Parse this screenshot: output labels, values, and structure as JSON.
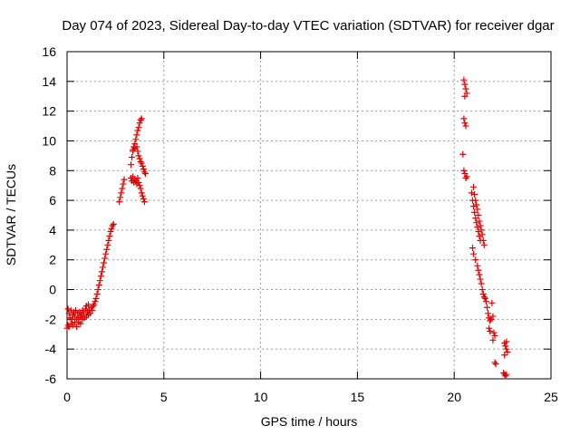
{
  "chart_data": {
    "type": "scatter",
    "title": "Day 074 of 2023, Sidereal Day-to-day VTEC variation (SDTVAR) for receiver dgar",
    "xlabel": "GPS time / hours",
    "ylabel": "SDTVAR / TECUs",
    "xlim": [
      0,
      25
    ],
    "ylim": [
      -6,
      16
    ],
    "x_ticks": [
      0,
      5,
      10,
      15,
      20,
      25
    ],
    "y_ticks": [
      -6,
      -4,
      -2,
      0,
      2,
      4,
      6,
      8,
      10,
      12,
      14,
      16
    ],
    "grid": true,
    "marker": "+",
    "marker_color": "#e00000",
    "series": [
      {
        "name": "SDTVAR",
        "color": "#e00000",
        "points": [
          [
            0.0,
            -2.6
          ],
          [
            0.05,
            -2.4
          ],
          [
            0.05,
            -1.3
          ],
          [
            0.1,
            -1.6
          ],
          [
            0.1,
            -2.5
          ],
          [
            0.15,
            -1.9
          ],
          [
            0.2,
            -1.4
          ],
          [
            0.2,
            -2.3
          ],
          [
            0.25,
            -2.0
          ],
          [
            0.3,
            -1.7
          ],
          [
            0.3,
            -2.4
          ],
          [
            0.35,
            -1.5
          ],
          [
            0.4,
            -2.2
          ],
          [
            0.4,
            -1.8
          ],
          [
            0.45,
            -1.4
          ],
          [
            0.5,
            -2.0
          ],
          [
            0.5,
            -2.5
          ],
          [
            0.55,
            -1.6
          ],
          [
            0.6,
            -1.9
          ],
          [
            0.6,
            -2.2
          ],
          [
            0.65,
            -1.5
          ],
          [
            0.7,
            -1.8
          ],
          [
            0.7,
            -2.3
          ],
          [
            0.75,
            -1.7
          ],
          [
            0.8,
            -1.4
          ],
          [
            0.8,
            -2.0
          ],
          [
            0.85,
            -1.6
          ],
          [
            0.9,
            -1.9
          ],
          [
            0.95,
            -1.3
          ],
          [
            1.0,
            -1.8
          ],
          [
            1.0,
            -1.1
          ],
          [
            1.05,
            -1.5
          ],
          [
            1.1,
            -1.7
          ],
          [
            1.1,
            -1.0
          ],
          [
            1.15,
            -1.4
          ],
          [
            1.2,
            -1.6
          ],
          [
            1.25,
            -1.2
          ],
          [
            1.3,
            -1.4
          ],
          [
            1.35,
            -1.1
          ],
          [
            1.4,
            -1.0
          ],
          [
            1.45,
            -0.8
          ],
          [
            1.5,
            -0.6
          ],
          [
            1.55,
            -0.3
          ],
          [
            1.6,
            0.0
          ],
          [
            1.65,
            0.3
          ],
          [
            1.7,
            0.6
          ],
          [
            1.75,
            0.9
          ],
          [
            1.8,
            1.2
          ],
          [
            1.85,
            1.5
          ],
          [
            1.9,
            1.8
          ],
          [
            1.95,
            2.1
          ],
          [
            2.0,
            2.4
          ],
          [
            2.05,
            2.7
          ],
          [
            2.1,
            3.0
          ],
          [
            2.15,
            3.3
          ],
          [
            2.2,
            3.6
          ],
          [
            2.25,
            3.9
          ],
          [
            2.3,
            4.1
          ],
          [
            2.35,
            4.3
          ],
          [
            2.4,
            4.4
          ],
          [
            2.7,
            5.9
          ],
          [
            2.75,
            6.2
          ],
          [
            2.8,
            6.5
          ],
          [
            2.85,
            6.8
          ],
          [
            2.9,
            7.1
          ],
          [
            2.95,
            7.4
          ],
          [
            3.3,
            8.4
          ],
          [
            3.35,
            8.9
          ],
          [
            3.4,
            9.3
          ],
          [
            3.45,
            9.6
          ],
          [
            3.5,
            9.8
          ],
          [
            3.55,
            10.1
          ],
          [
            3.6,
            10.4
          ],
          [
            3.65,
            10.7
          ],
          [
            3.7,
            10.9
          ],
          [
            3.75,
            11.2
          ],
          [
            3.8,
            11.4
          ],
          [
            3.85,
            11.5
          ],
          [
            3.3,
            7.5
          ],
          [
            3.35,
            7.3
          ],
          [
            3.4,
            7.6
          ],
          [
            3.45,
            7.2
          ],
          [
            3.5,
            7.4
          ],
          [
            3.55,
            7.3
          ],
          [
            3.6,
            7.1
          ],
          [
            3.65,
            7.5
          ],
          [
            3.7,
            7.2
          ],
          [
            3.75,
            7.0
          ],
          [
            3.8,
            6.8
          ],
          [
            3.85,
            6.5
          ],
          [
            3.9,
            6.3
          ],
          [
            3.95,
            6.1
          ],
          [
            4.0,
            5.9
          ],
          [
            3.4,
            9.4
          ],
          [
            3.5,
            9.5
          ],
          [
            3.6,
            9.6
          ],
          [
            3.65,
            9.3
          ],
          [
            3.7,
            9.0
          ],
          [
            3.75,
            8.8
          ],
          [
            3.8,
            8.6
          ],
          [
            3.85,
            8.5
          ],
          [
            3.9,
            8.3
          ],
          [
            3.95,
            8.1
          ],
          [
            4.0,
            7.9
          ],
          [
            4.05,
            7.8
          ],
          [
            20.5,
            14.1
          ],
          [
            20.55,
            13.8
          ],
          [
            20.6,
            13.5
          ],
          [
            20.65,
            13.2
          ],
          [
            20.55,
            13.0
          ],
          [
            20.5,
            11.5
          ],
          [
            20.55,
            11.2
          ],
          [
            20.6,
            11.0
          ],
          [
            20.45,
            9.1
          ],
          [
            20.5,
            8.0
          ],
          [
            20.55,
            7.8
          ],
          [
            20.6,
            7.5
          ],
          [
            20.65,
            7.6
          ],
          [
            20.9,
            6.5
          ],
          [
            20.95,
            6.0
          ],
          [
            21.0,
            5.6
          ],
          [
            21.05,
            5.2
          ],
          [
            21.1,
            4.8
          ],
          [
            21.15,
            4.5
          ],
          [
            21.2,
            4.2
          ],
          [
            21.25,
            3.9
          ],
          [
            21.3,
            3.6
          ],
          [
            21.35,
            3.3
          ],
          [
            21.0,
            6.9
          ],
          [
            21.05,
            6.4
          ],
          [
            21.1,
            6.0
          ],
          [
            21.15,
            5.7
          ],
          [
            21.2,
            5.4
          ],
          [
            21.25,
            5.0
          ],
          [
            21.3,
            4.6
          ],
          [
            21.35,
            4.3
          ],
          [
            21.4,
            4.0
          ],
          [
            21.45,
            3.7
          ],
          [
            21.5,
            3.3
          ],
          [
            21.55,
            3.0
          ],
          [
            20.95,
            2.8
          ],
          [
            21.0,
            2.4
          ],
          [
            21.1,
            2.0
          ],
          [
            21.2,
            1.6
          ],
          [
            21.25,
            1.3
          ],
          [
            21.3,
            1.0
          ],
          [
            21.35,
            0.7
          ],
          [
            21.4,
            0.4
          ],
          [
            21.45,
            0.0
          ],
          [
            21.5,
            -0.3
          ],
          [
            21.55,
            -0.5
          ],
          [
            21.6,
            -0.6
          ],
          [
            21.65,
            -0.8
          ],
          [
            21.7,
            -1.2
          ],
          [
            21.75,
            -1.6
          ],
          [
            21.8,
            -1.9
          ],
          [
            21.85,
            -2.1
          ],
          [
            21.9,
            -2.0
          ],
          [
            21.8,
            -2.6
          ],
          [
            21.85,
            -2.8
          ],
          [
            21.95,
            -0.9
          ],
          [
            22.0,
            -1.8
          ],
          [
            22.05,
            -2.9
          ],
          [
            22.1,
            -3.1
          ],
          [
            22.0,
            -3.4
          ],
          [
            22.1,
            -4.9
          ],
          [
            22.15,
            -5.0
          ],
          [
            22.6,
            -3.6
          ],
          [
            22.65,
            -3.8
          ],
          [
            22.7,
            -4.0
          ],
          [
            22.75,
            -4.2
          ],
          [
            22.6,
            -4.4
          ],
          [
            22.7,
            -3.5
          ],
          [
            22.55,
            -5.6
          ],
          [
            22.6,
            -5.7
          ],
          [
            22.65,
            -5.8
          ],
          [
            22.7,
            -5.7
          ]
        ]
      }
    ]
  }
}
